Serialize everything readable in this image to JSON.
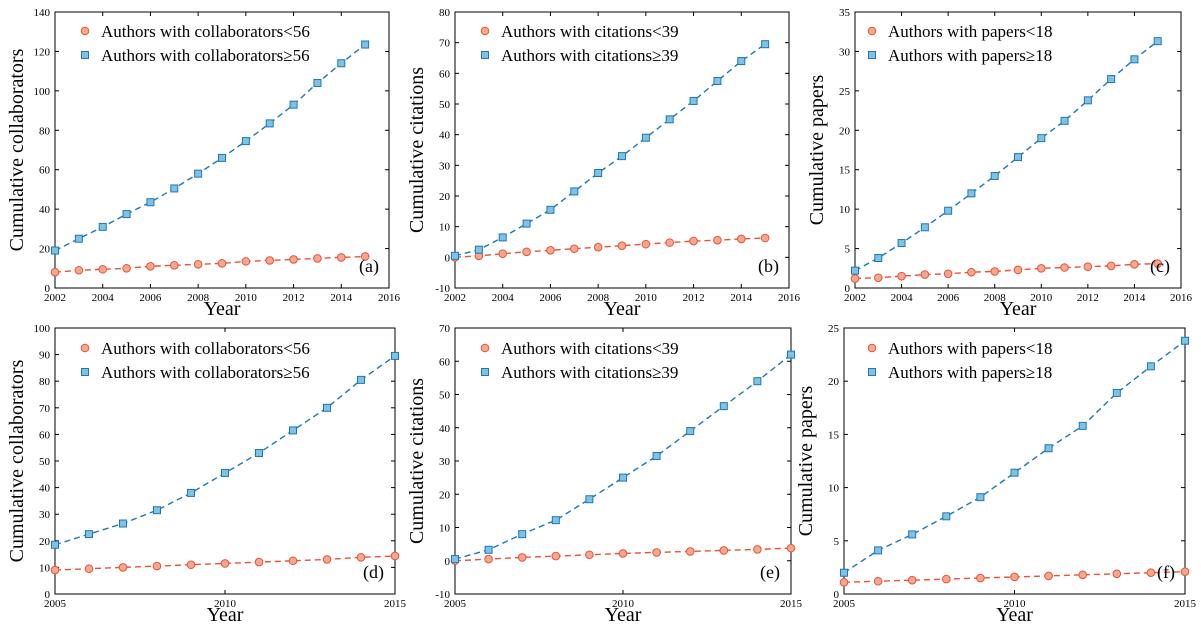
{
  "colors": {
    "series_low": "#e8523a",
    "series_low_fill": "#f4a98f",
    "series_high": "#1f77b4",
    "series_high_fill": "#7ec3e6"
  },
  "chart_data": [
    {
      "type": "line",
      "panel": "(a)",
      "xlabel": "Year",
      "ylabel": "Cumulative collaborators",
      "xlim": [
        2002,
        2016
      ],
      "ylim": [
        0,
        140
      ],
      "xticks": [
        "2002",
        "2004",
        "2006",
        "2008",
        "2010",
        "2012",
        "2014",
        "2016"
      ],
      "yticks": [
        "0",
        "20",
        "40",
        "60",
        "80",
        "100",
        "120",
        "140"
      ],
      "legend_position": "top-left",
      "grid": false,
      "x": [
        2002,
        2003,
        2004,
        2005,
        2006,
        2007,
        2008,
        2009,
        2010,
        2011,
        2012,
        2013,
        2014,
        2015
      ],
      "series": [
        {
          "name": "Authors with collaborators<56",
          "marker": "circle",
          "values": [
            8,
            9,
            9.5,
            10,
            11,
            11.5,
            12,
            12.5,
            13.5,
            14,
            14.5,
            15,
            15.5,
            16
          ]
        },
        {
          "name": "Authors with collaborators≥56",
          "marker": "square",
          "values": [
            19,
            25,
            31,
            37.5,
            43.5,
            50.5,
            58,
            66,
            74.5,
            83.5,
            93,
            104,
            114,
            123.5
          ]
        }
      ]
    },
    {
      "type": "line",
      "panel": "(b)",
      "xlabel": "Year",
      "ylabel": "Cumulative citations",
      "xlim": [
        2002,
        2016
      ],
      "ylim": [
        -10,
        80
      ],
      "xticks": [
        "2002",
        "2004",
        "2006",
        "2008",
        "2010",
        "2012",
        "2014",
        "2016"
      ],
      "yticks": [
        "-10",
        "0",
        "10",
        "20",
        "30",
        "40",
        "50",
        "60",
        "70",
        "80"
      ],
      "legend_position": "top-left",
      "grid": false,
      "x": [
        2002,
        2003,
        2004,
        2005,
        2006,
        2007,
        2008,
        2009,
        2010,
        2011,
        2012,
        2013,
        2014,
        2015
      ],
      "series": [
        {
          "name": "Authors with citations<39",
          "marker": "circle",
          "values": [
            0,
            0.5,
            1.2,
            1.8,
            2.3,
            2.8,
            3.3,
            3.8,
            4.3,
            4.8,
            5.3,
            5.6,
            6,
            6.3
          ]
        },
        {
          "name": "Authors with citations≥39",
          "marker": "square",
          "values": [
            0.5,
            2.5,
            6.5,
            11,
            15.5,
            21.5,
            27.5,
            33,
            39,
            45,
            51,
            57.5,
            64,
            69.5
          ]
        }
      ]
    },
    {
      "type": "line",
      "panel": "(c)",
      "xlabel": "Year",
      "ylabel": "Cumulative papers",
      "xlim": [
        2002,
        2016
      ],
      "ylim": [
        0,
        35
      ],
      "xticks": [
        "2002",
        "2004",
        "2006",
        "2008",
        "2010",
        "2012",
        "2014",
        "2016"
      ],
      "yticks": [
        "0",
        "5",
        "10",
        "15",
        "20",
        "25",
        "30",
        "35"
      ],
      "legend_position": "top-left",
      "grid": false,
      "x": [
        2002,
        2003,
        2004,
        2005,
        2006,
        2007,
        2008,
        2009,
        2010,
        2011,
        2012,
        2013,
        2014,
        2015
      ],
      "series": [
        {
          "name": "Authors with papers<18",
          "marker": "circle",
          "values": [
            1.2,
            1.3,
            1.5,
            1.7,
            1.8,
            2,
            2.1,
            2.3,
            2.5,
            2.6,
            2.7,
            2.8,
            3,
            3.1
          ]
        },
        {
          "name": "Authors with papers≥18",
          "marker": "square",
          "values": [
            2.2,
            3.8,
            5.7,
            7.7,
            9.8,
            12,
            14.2,
            16.6,
            19,
            21.2,
            23.8,
            26.5,
            29,
            31.3
          ]
        }
      ]
    },
    {
      "type": "line",
      "panel": "(d)",
      "xlabel": "Year",
      "ylabel": "Cumulative collaborators",
      "xlim": [
        2005,
        2015
      ],
      "ylim": [
        0,
        100
      ],
      "xticks": [
        "2005",
        "2010",
        "2015"
      ],
      "yticks": [
        "0",
        "10",
        "20",
        "30",
        "40",
        "50",
        "60",
        "70",
        "80",
        "90",
        "100"
      ],
      "legend_position": "top-left",
      "grid": false,
      "x": [
        2005,
        2006,
        2007,
        2008,
        2009,
        2010,
        2011,
        2012,
        2013,
        2014,
        2015
      ],
      "series": [
        {
          "name": "Authors with collaborators<56",
          "marker": "circle",
          "values": [
            9,
            9.5,
            10,
            10.5,
            11,
            11.5,
            12,
            12.5,
            13,
            13.8,
            14.3
          ]
        },
        {
          "name": "Authors with collaborators≥56",
          "marker": "square",
          "values": [
            18.5,
            22.5,
            26.5,
            31.5,
            38,
            45.5,
            53,
            61.5,
            70,
            80.5,
            89.5
          ]
        }
      ]
    },
    {
      "type": "line",
      "panel": "(e)",
      "xlabel": "Year",
      "ylabel": "Cumulative citations",
      "xlim": [
        2005,
        2015
      ],
      "ylim": [
        -10,
        70
      ],
      "xticks": [
        "2005",
        "2010",
        "2015"
      ],
      "yticks": [
        "-10",
        "0",
        "10",
        "20",
        "30",
        "40",
        "50",
        "60",
        "70"
      ],
      "legend_position": "top-left",
      "grid": false,
      "x": [
        2005,
        2006,
        2007,
        2008,
        2009,
        2010,
        2011,
        2012,
        2013,
        2014,
        2015
      ],
      "series": [
        {
          "name": "Authors with citations<39",
          "marker": "circle",
          "values": [
            0,
            0.5,
            1,
            1.4,
            1.8,
            2.2,
            2.5,
            2.8,
            3.1,
            3.4,
            3.8
          ]
        },
        {
          "name": "Authors with citations≥39",
          "marker": "square",
          "values": [
            0.5,
            3.3,
            8,
            12.2,
            18.5,
            25,
            31.5,
            39,
            46.5,
            54,
            62
          ]
        }
      ]
    },
    {
      "type": "line",
      "panel": "(f)",
      "xlabel": "Year",
      "ylabel": "Cumulative papers",
      "xlim": [
        2005,
        2015
      ],
      "ylim": [
        0,
        25
      ],
      "xticks": [
        "2005",
        "2010",
        "2015"
      ],
      "yticks": [
        "0",
        "5",
        "10",
        "15",
        "20",
        "25"
      ],
      "legend_position": "top-left",
      "grid": false,
      "x": [
        2005,
        2006,
        2007,
        2008,
        2009,
        2010,
        2011,
        2012,
        2013,
        2014,
        2015
      ],
      "series": [
        {
          "name": "Authors with papers<18",
          "marker": "circle",
          "values": [
            1.1,
            1.2,
            1.3,
            1.4,
            1.5,
            1.6,
            1.7,
            1.8,
            1.9,
            2,
            2.1
          ]
        },
        {
          "name": "Authors with papers≥18",
          "marker": "square",
          "values": [
            2,
            4.1,
            5.6,
            7.3,
            9.1,
            11.4,
            13.7,
            15.8,
            18.9,
            21.4,
            23.8
          ]
        }
      ]
    }
  ]
}
